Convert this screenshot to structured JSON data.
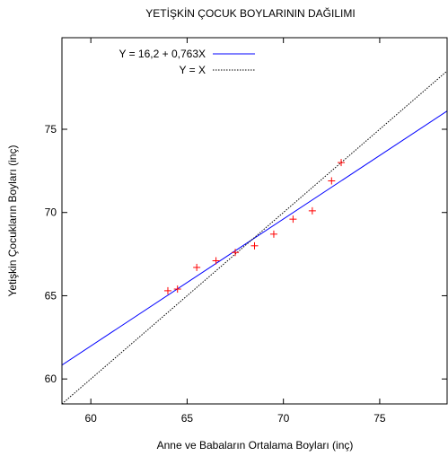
{
  "chart_data": {
    "type": "scatter",
    "title": "YETİŞKİN ÇOCUK BOYLARININ DAĞILIMI",
    "xlabel": "Anne ve Babaların Ortalama Boyları (inç)",
    "ylabel": "Yetişkin Çocukların Boyları (inç)",
    "xlim": [
      58.5,
      78.5
    ],
    "ylim": [
      58.5,
      80.5
    ],
    "xticks": [
      60,
      65,
      70,
      75
    ],
    "yticks": [
      60,
      65,
      70,
      75
    ],
    "grid": false,
    "legend_position": "top-left",
    "points": {
      "marker": "+",
      "color": "#ff0000",
      "x": [
        64.0,
        64.5,
        65.5,
        66.5,
        67.5,
        68.5,
        69.5,
        70.5,
        71.5,
        72.5,
        73.0
      ],
      "y": [
        65.3,
        65.4,
        66.7,
        67.1,
        67.6,
        68.0,
        68.7,
        69.6,
        70.1,
        71.9,
        73.0
      ]
    },
    "lines": [
      {
        "name": "Y = 16,2 + 0,763X",
        "intercept": 16.2,
        "slope": 0.763,
        "color": "#0000ff",
        "style": "solid"
      },
      {
        "name": "Y = X",
        "intercept": 0,
        "slope": 1,
        "color": "#000000",
        "style": "dotted"
      }
    ]
  }
}
